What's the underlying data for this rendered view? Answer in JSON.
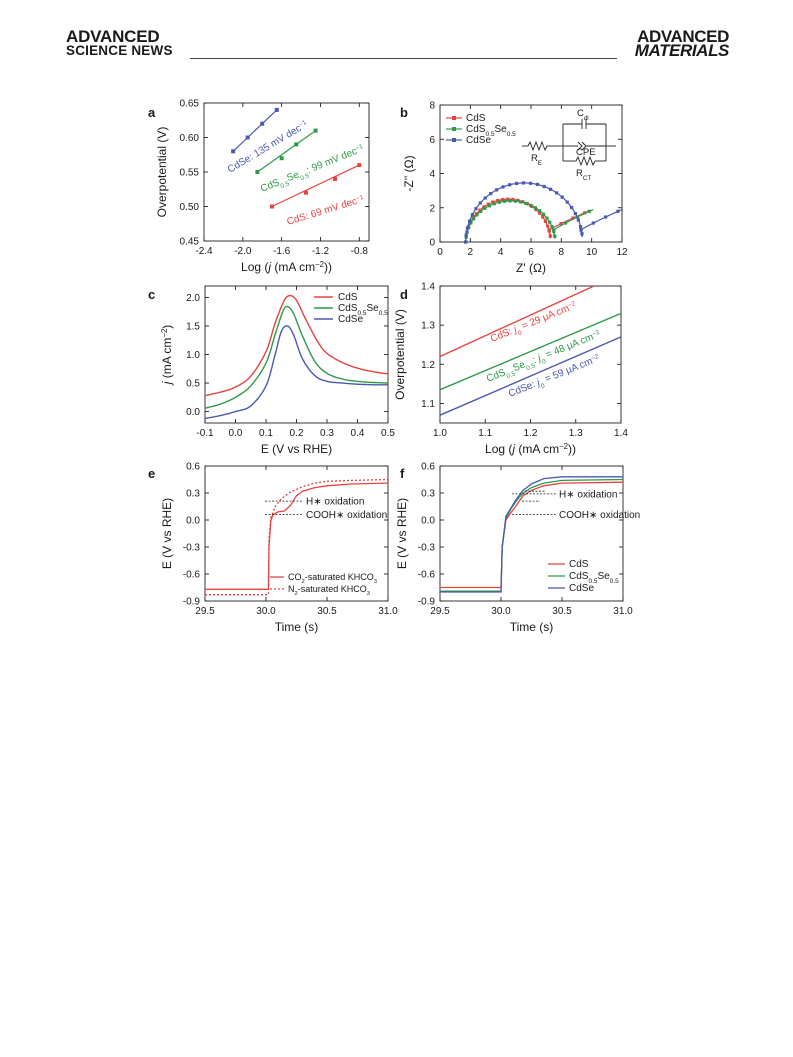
{
  "header": {
    "left_logo_line1": "ADVANCED",
    "left_logo_line2": "SCIENCE NEWS",
    "right_logo_line1": "ADVANCED",
    "right_logo_line2": "MATERIALS"
  },
  "colors": {
    "CdS": "#e8423f",
    "CdS0.5Se0.5": "#2e9a49",
    "CdSe": "#4a59b0"
  },
  "chart_data": [
    {
      "panel": "a",
      "type": "scatter",
      "xlabel": "Log (j (mA cm⁻²))",
      "ylabel": "Overpotential (V)",
      "xlim": [
        -2.4,
        -0.7
      ],
      "ylim": [
        0.45,
        0.65
      ],
      "xticks": [
        "-2.4",
        "-2.0",
        "-1.6",
        "-1.2",
        "-0.8"
      ],
      "yticks": [
        "0.45",
        "0.50",
        "0.55",
        "0.60",
        "0.65"
      ],
      "series": [
        {
          "name": "CdSe",
          "label": "CdSe: 135 mV dec⁻¹",
          "x": [
            -2.1,
            -1.95,
            -1.8,
            -1.65
          ],
          "y": [
            0.58,
            0.6,
            0.62,
            0.64
          ]
        },
        {
          "name": "CdS0.5Se0.5",
          "label": "CdS0.5Se0.5: 99 mV dec⁻¹",
          "x": [
            -1.85,
            -1.6,
            -1.45,
            -1.25
          ],
          "y": [
            0.55,
            0.57,
            0.59,
            0.61
          ]
        },
        {
          "name": "CdS",
          "label": "CdS: 69 mV dec⁻¹",
          "x": [
            -1.7,
            -1.35,
            -1.05,
            -0.8
          ],
          "y": [
            0.5,
            0.52,
            0.54,
            0.56
          ]
        }
      ]
    },
    {
      "panel": "b",
      "type": "line",
      "xlabel": "Z' (Ω)",
      "ylabel": "-Z'' (Ω)",
      "xlim": [
        0,
        12
      ],
      "ylim": [
        0,
        8
      ],
      "xticks": [
        "0",
        "2",
        "4",
        "6",
        "8",
        "10",
        "12"
      ],
      "yticks": [
        "0",
        "2",
        "4",
        "6",
        "8"
      ],
      "legend": [
        "CdS",
        "CdS0.5Se0.5",
        "CdSe"
      ],
      "circuit_labels": {
        "re": "RE",
        "cdl": "Cdl",
        "cpe": "CPE",
        "rct": "RCT"
      },
      "series": [
        {
          "name": "CdS",
          "start": 1.7,
          "end": 7.3,
          "peak": 2.5,
          "tail_end": [
            9.8,
            1.8
          ]
        },
        {
          "name": "CdS0.5Se0.5",
          "start": 1.7,
          "end": 7.6,
          "peak": 2.4,
          "tail_end": [
            10.1,
            1.9
          ]
        },
        {
          "name": "CdSe",
          "start": 1.7,
          "end": 9.4,
          "peak": 3.45,
          "tail_end": [
            12.0,
            1.9
          ]
        }
      ]
    },
    {
      "panel": "c",
      "type": "line",
      "xlabel": "E (V vs RHE)",
      "ylabel": "j (mA cm⁻²)",
      "xlim": [
        -0.1,
        0.5
      ],
      "ylim": [
        -0.2,
        2.2
      ],
      "xticks": [
        "-0.1",
        "0.0",
        "0.1",
        "0.2",
        "0.3",
        "0.4",
        "0.5"
      ],
      "yticks": [
        "0.0",
        "0.5",
        "1.0",
        "1.5",
        "2.0"
      ],
      "legend": [
        "CdS",
        "CdS0.5Se0.5",
        "CdSe"
      ],
      "series": [
        {
          "name": "CdS",
          "x": [
            -0.1,
            -0.05,
            0.0,
            0.05,
            0.1,
            0.13,
            0.16,
            0.18,
            0.2,
            0.23,
            0.27,
            0.3,
            0.35,
            0.4,
            0.45,
            0.5
          ],
          "y": [
            0.28,
            0.34,
            0.43,
            0.62,
            1.05,
            1.55,
            1.95,
            2.03,
            1.95,
            1.62,
            1.22,
            1.02,
            0.86,
            0.76,
            0.7,
            0.66
          ]
        },
        {
          "name": "CdS0.5Se0.5",
          "x": [
            -0.1,
            -0.05,
            0.0,
            0.05,
            0.1,
            0.13,
            0.155,
            0.17,
            0.19,
            0.22,
            0.26,
            0.3,
            0.35,
            0.4,
            0.45,
            0.5
          ],
          "y": [
            0.06,
            0.13,
            0.25,
            0.45,
            0.85,
            1.35,
            1.75,
            1.84,
            1.72,
            1.32,
            0.88,
            0.67,
            0.57,
            0.53,
            0.51,
            0.5
          ]
        },
        {
          "name": "CdSe",
          "x": [
            -0.1,
            -0.05,
            0.0,
            0.05,
            0.1,
            0.13,
            0.15,
            0.17,
            0.19,
            0.22,
            0.26,
            0.3,
            0.35,
            0.4,
            0.45,
            0.5
          ],
          "y": [
            -0.12,
            -0.07,
            0.0,
            0.1,
            0.45,
            1.0,
            1.4,
            1.5,
            1.35,
            0.92,
            0.63,
            0.53,
            0.5,
            0.48,
            0.47,
            0.47
          ]
        }
      ]
    },
    {
      "panel": "d",
      "type": "line",
      "xlabel": "Log (j (mA cm⁻²))",
      "ylabel": "Overpotential (V)",
      "xlim": [
        1.0,
        1.4
      ],
      "ylim": [
        1.05,
        1.4
      ],
      "xticks": [
        "1.0",
        "1.1",
        "1.2",
        "1.3",
        "1.4"
      ],
      "yticks": [
        "1.1",
        "1.2",
        "1.3",
        "1.4"
      ],
      "series": [
        {
          "name": "CdS",
          "label": "CdS: j0 = 29 μA cm⁻²",
          "x": [
            1.0,
            1.34
          ],
          "y": [
            1.22,
            1.4
          ]
        },
        {
          "name": "CdS0.5Se0.5",
          "label": "CdS0.5Se0.5: j0 = 48 μA cm⁻²",
          "x": [
            1.0,
            1.4
          ],
          "y": [
            1.135,
            1.33
          ]
        },
        {
          "name": "CdSe",
          "label": "CdSe: j0 = 59 μA cm⁻²",
          "x": [
            1.0,
            1.4
          ],
          "y": [
            1.07,
            1.27
          ]
        }
      ]
    },
    {
      "panel": "e",
      "type": "line",
      "xlabel": "Time (s)",
      "ylabel": "E (V vs RHE)",
      "xlim": [
        29.5,
        31.0
      ],
      "ylim": [
        -0.9,
        0.6
      ],
      "xticks": [
        "29.5",
        "30.0",
        "30.5",
        "31.0"
      ],
      "yticks": [
        "-0.9",
        "-0.6",
        "-0.3",
        "0.0",
        "0.3",
        "0.6"
      ],
      "annotations": [
        "H∗ oxidation",
        "COOH∗ oxidation"
      ],
      "annotation_levels": [
        0.21,
        0.06
      ],
      "legend": [
        "CO2-saturated KHCO3",
        "N2-saturated KHCO3"
      ],
      "series": [
        {
          "name": "CO2-saturated KHCO3",
          "style": "solid",
          "x": [
            29.5,
            30.02,
            30.025,
            30.04,
            30.06,
            30.1,
            30.15,
            30.2,
            30.25,
            30.3,
            30.4,
            30.5,
            30.7,
            31.0
          ],
          "y": [
            -0.77,
            -0.77,
            -0.3,
            0.0,
            0.06,
            0.09,
            0.1,
            0.16,
            0.27,
            0.32,
            0.36,
            0.38,
            0.4,
            0.41
          ]
        },
        {
          "name": "N2-saturated KHCO3",
          "style": "dotted",
          "x": [
            29.5,
            30.02,
            30.025,
            30.04,
            30.08,
            30.13,
            30.2,
            30.3,
            30.4,
            30.5,
            30.7,
            31.0
          ],
          "y": [
            -0.83,
            -0.83,
            -0.2,
            0.03,
            0.16,
            0.24,
            0.31,
            0.37,
            0.41,
            0.43,
            0.44,
            0.45
          ]
        }
      ]
    },
    {
      "panel": "f",
      "type": "line",
      "xlabel": "Time (s)",
      "ylabel": "E (V vs RHE)",
      "xlim": [
        29.5,
        31.0
      ],
      "ylim": [
        -0.9,
        0.6
      ],
      "xticks": [
        "29.5",
        "30.0",
        "30.5",
        "31.0"
      ],
      "yticks": [
        "-0.9",
        "-0.6",
        "-0.3",
        "0.0",
        "0.3",
        "0.6"
      ],
      "annotations": [
        "H∗ oxidation",
        "COOH∗ oxidation"
      ],
      "annotation_levels": [
        0.29,
        0.06
      ],
      "legend": [
        "CdS",
        "CdS0.5Se0.5",
        "CdSe"
      ],
      "series": [
        {
          "name": "CdS",
          "x": [
            29.5,
            30.0,
            30.01,
            30.04,
            30.08,
            30.12,
            30.18,
            30.25,
            30.35,
            30.5,
            31.0
          ],
          "y": [
            -0.75,
            -0.75,
            -0.3,
            0.0,
            0.08,
            0.15,
            0.27,
            0.33,
            0.38,
            0.41,
            0.42
          ]
        },
        {
          "name": "CdS0.5Se0.5",
          "x": [
            29.5,
            30.0,
            30.01,
            30.04,
            30.08,
            30.12,
            30.18,
            30.25,
            30.35,
            30.5,
            31.0
          ],
          "y": [
            -0.79,
            -0.79,
            -0.3,
            0.02,
            0.12,
            0.2,
            0.3,
            0.36,
            0.41,
            0.44,
            0.45
          ]
        },
        {
          "name": "CdSe",
          "x": [
            29.5,
            30.0,
            30.01,
            30.04,
            30.08,
            30.12,
            30.18,
            30.25,
            30.35,
            30.5,
            31.0
          ],
          "y": [
            -0.8,
            -0.8,
            -0.3,
            0.04,
            0.13,
            0.22,
            0.33,
            0.4,
            0.46,
            0.48,
            0.48
          ]
        }
      ]
    }
  ]
}
